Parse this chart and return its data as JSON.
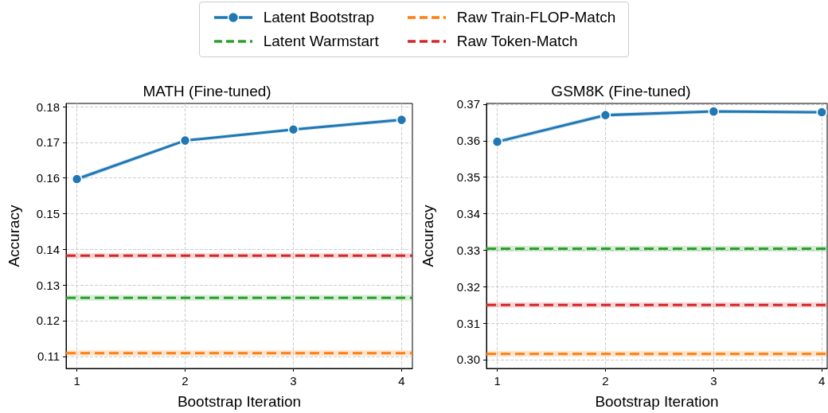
{
  "chart_data": [
    {
      "type": "line",
      "title": "MATH (Fine-tuned)",
      "xlabel": "Bootstrap Iteration",
      "ylabel": "Accuracy",
      "legend": "top",
      "grid": true,
      "xlim": [
        0.9,
        4.1
      ],
      "xticks": [
        1,
        2,
        3,
        4
      ],
      "ylim": [
        0.1066,
        0.1809
      ],
      "yticks": [
        0.11,
        0.12,
        0.13,
        0.14,
        0.15,
        0.16,
        0.17,
        0.18
      ],
      "series": [
        {
          "name": "Latent Bootstrap",
          "color": "#1f77b4",
          "marker": "circle",
          "line_style": "solid",
          "x": [
            1,
            2,
            3,
            4
          ],
          "values": [
            0.1597,
            0.1705,
            0.1736,
            0.1763
          ],
          "lower": [
            0.159,
            0.17,
            0.1731,
            0.1757
          ],
          "upper": [
            0.1604,
            0.171,
            0.1741,
            0.1769
          ]
        },
        {
          "name": "Latent Warmstart",
          "color": "#2ca02c",
          "marker": "none",
          "line_style": "dashed",
          "x": [
            0.9,
            4.1
          ],
          "values": [
            0.1264,
            0.1264
          ],
          "lower": [
            0.1256,
            0.1256
          ],
          "upper": [
            0.1272,
            0.1272
          ]
        },
        {
          "name": "Raw Train-FLOP-Match",
          "color": "#ff7f0e",
          "marker": "none",
          "line_style": "dashed",
          "x": [
            0.9,
            4.1
          ],
          "values": [
            0.1109,
            0.1109
          ],
          "lower": [
            0.1101,
            0.1101
          ],
          "upper": [
            0.1117,
            0.1117
          ]
        },
        {
          "name": "Raw Token-Match",
          "color": "#d62728",
          "marker": "none",
          "line_style": "dashed",
          "x": [
            0.9,
            4.1
          ],
          "values": [
            0.1382,
            0.1382
          ],
          "lower": [
            0.1375,
            0.1375
          ],
          "upper": [
            0.1389,
            0.1389
          ]
        }
      ]
    },
    {
      "type": "line",
      "title": "GSM8K (Fine-tuned)",
      "xlabel": "Bootstrap Iteration",
      "ylabel": "Accuracy",
      "grid": true,
      "xlim": [
        0.9,
        4.05
      ],
      "xticks": [
        1,
        2,
        3,
        4
      ],
      "ylim": [
        0.2976,
        0.3702
      ],
      "yticks": [
        {
          "value": 0.3,
          "label": "0.30"
        },
        0.31,
        0.32,
        0.33,
        0.34,
        0.35,
        0.36,
        0.37
      ],
      "series": [
        {
          "color": "#1f77b4",
          "marker": "circle",
          "line_style": "solid",
          "x": [
            1,
            2,
            3,
            4
          ],
          "values": [
            0.3597,
            0.367,
            0.368,
            0.3678
          ],
          "lower": [
            0.3591,
            0.3664,
            0.3675,
            0.3673
          ],
          "upper": [
            0.3603,
            0.3676,
            0.3685,
            0.3683
          ]
        },
        {
          "color": "#2ca02c",
          "marker": "none",
          "line_style": "dashed",
          "x": [
            0.9,
            4.05
          ],
          "values": [
            0.3304,
            0.3304
          ],
          "lower": [
            0.3296,
            0.3296
          ],
          "upper": [
            0.3312,
            0.3312
          ]
        },
        {
          "color": "#ff7f0e",
          "marker": "none",
          "line_style": "dashed",
          "x": [
            0.9,
            4.05
          ],
          "values": [
            0.3016,
            0.3016
          ],
          "lower": [
            0.3008,
            0.3008
          ],
          "upper": [
            0.3024,
            0.3024
          ]
        },
        {
          "color": "#d62728",
          "marker": "none",
          "line_style": "dashed",
          "x": [
            0.9,
            4.05
          ],
          "values": [
            0.315,
            0.315
          ],
          "lower": [
            0.3143,
            0.3143
          ],
          "upper": [
            0.3157,
            0.3157
          ]
        }
      ]
    }
  ]
}
